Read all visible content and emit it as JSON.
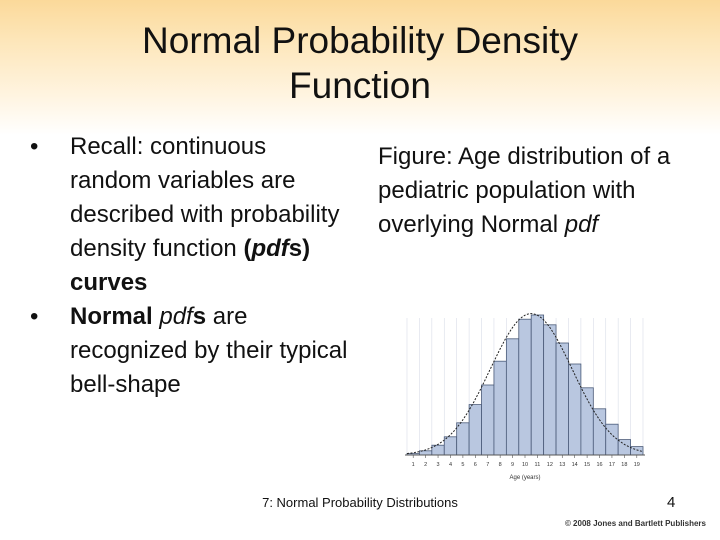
{
  "slide": {
    "title_line1": "Normal Probability Density",
    "title_line2": "Function",
    "bullet1_a": "Recall: continuous random variables are described with probability density function ",
    "bullet1_b": "(",
    "bullet1_c": "pdf",
    "bullet1_d": "s) curves",
    "bullet2_a": "Normal ",
    "bullet2_b": "pdf",
    "bullet2_c": "s",
    "bullet2_d": " are recognized by their typical bell-shape",
    "caption_a": "Figure: Age distribution of a pediatric population with overlying Normal ",
    "caption_b": "pdf",
    "footer": "7: Normal Probability Distributions",
    "page_number": "4",
    "copyright": "© 2008 Jones and Bartlett Publishers"
  },
  "colors": {
    "bar_fill": "#b9c7e0",
    "bar_stroke": "#4a5a78",
    "curve": "#222222",
    "axis": "#555555"
  },
  "chart_data": {
    "type": "bar",
    "xlabel": "Age (years)",
    "ylabel": "",
    "categories": [
      "1",
      "2",
      "3",
      "4",
      "5",
      "6",
      "7",
      "8",
      "9",
      "10",
      "11",
      "12",
      "13",
      "14",
      "15",
      "16",
      "17",
      "18",
      "19"
    ],
    "values": [
      0.01,
      0.03,
      0.07,
      0.13,
      0.23,
      0.36,
      0.5,
      0.67,
      0.83,
      0.97,
      1.0,
      0.93,
      0.8,
      0.65,
      0.48,
      0.33,
      0.22,
      0.11,
      0.06
    ],
    "overlay": "normal pdf curve",
    "ylim": [
      0,
      1.05
    ]
  }
}
